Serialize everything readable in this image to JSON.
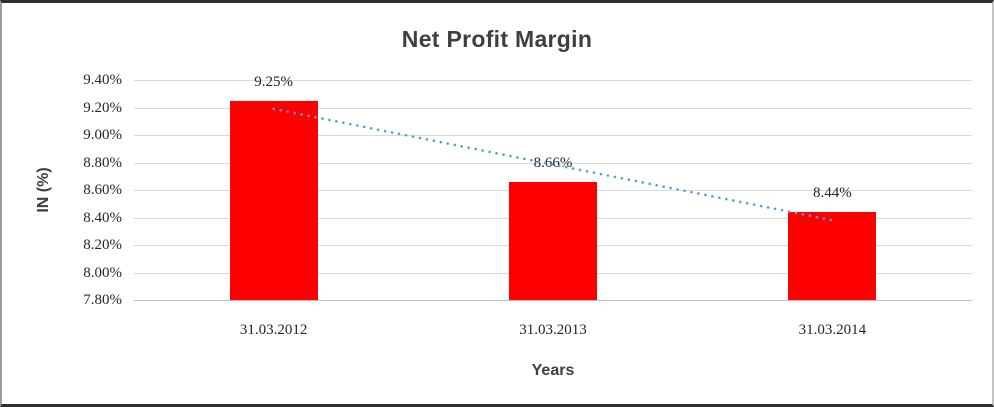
{
  "chart_data": {
    "type": "bar",
    "title": "Net Profit Margin",
    "xlabel": "Years",
    "ylabel": "IN (%)",
    "categories": [
      "31.03.2012",
      "31.03.2013",
      "31.03.2014"
    ],
    "values": [
      9.25,
      8.66,
      8.44
    ],
    "data_labels": [
      "9.25%",
      "8.66%",
      "8.44%"
    ],
    "y_tick_labels": [
      "9.40%",
      "9.20%",
      "9.00%",
      "8.80%",
      "8.60%",
      "8.40%",
      "8.20%",
      "8.00%",
      "7.80%"
    ],
    "ylim": [
      7.8,
      9.4
    ],
    "grid": true,
    "legend": "none",
    "colors": {
      "bar": "#FF0000",
      "trendline": "#5B9BD5",
      "gridline": "#D9D9D9",
      "baseline": "#BFBFBF",
      "title_text": "#3F3F3F",
      "tick_text": "#262626"
    },
    "trendline": {
      "type": "linear",
      "style": "dotted",
      "points": [
        {
          "x": "31.03.2012",
          "y": 9.19
        },
        {
          "x": "31.03.2014",
          "y": 8.38
        }
      ]
    }
  }
}
